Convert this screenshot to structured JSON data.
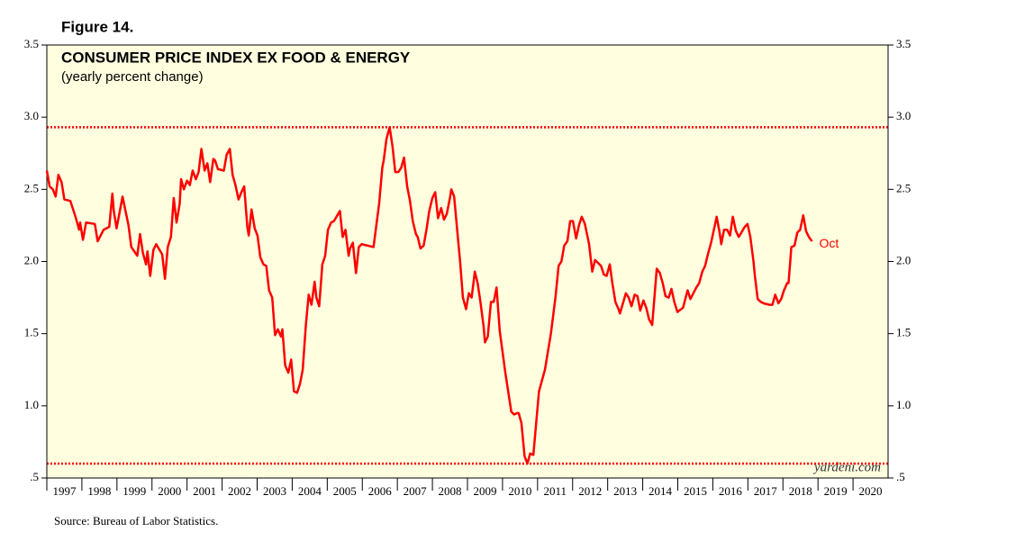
{
  "chart_data": {
    "type": "line",
    "figure_label": "Figure 14.",
    "title": "CONSUMER PRICE INDEX EX FOOD & ENERGY",
    "subtitle": "(yearly percent change)",
    "source": "Source: Bureau of Labor Statistics.",
    "watermark": "yardeni.com",
    "end_label": "Oct",
    "color": "#ff0000",
    "hlines": [
      2.93,
      0.6
    ],
    "xlim": [
      1997,
      2021
    ],
    "xticks": [
      1997,
      1998,
      1999,
      2000,
      2001,
      2002,
      2003,
      2004,
      2005,
      2006,
      2007,
      2008,
      2009,
      2010,
      2011,
      2012,
      2013,
      2014,
      2015,
      2016,
      2017,
      2018,
      2019,
      2020
    ],
    "ylim": [
      0.5,
      3.5
    ],
    "yticks": [
      {
        "value": 0.5,
        "label": ".5"
      },
      {
        "value": 1,
        "label": "1.0"
      },
      {
        "value": 1.5,
        "label": "1.5"
      },
      {
        "value": 2,
        "label": "2.0"
      },
      {
        "value": 2.5,
        "label": "2.5"
      },
      {
        "value": 3,
        "label": "3.0"
      },
      3.5
    ],
    "x": [
      1997,
      1997.08,
      1997.17,
      1997.25,
      1997.33,
      1997.42,
      1997.5,
      1997.67,
      1997.83,
      1997.92,
      1997.95,
      1998.03,
      1998.12,
      1998.37,
      1998.45,
      1998.62,
      1998.78,
      1998.87,
      1998.91,
      1998.99,
      1999.16,
      1999.33,
      1999.41,
      1999.58,
      1999.66,
      1999.74,
      1999.83,
      1999.87,
      1999.95,
      2000.04,
      2000.12,
      2000.29,
      2000.37,
      2000.45,
      2000.54,
      2000.62,
      2000.7,
      2000.79,
      2000.83,
      2000.91,
      2001.0,
      2001.08,
      2001.16,
      2001.25,
      2001.33,
      2001.41,
      2001.5,
      2001.58,
      2001.66,
      2001.75,
      2001.8,
      2001.88,
      2002.05,
      2002.13,
      2002.22,
      2002.3,
      2002.38,
      2002.47,
      2002.55,
      2002.63,
      2002.72,
      2002.76,
      2002.84,
      2002.93,
      2003.01,
      2003.09,
      2003.18,
      2003.26,
      2003.34,
      2003.43,
      2003.51,
      2003.59,
      2003.68,
      2003.72,
      2003.8,
      2003.89,
      2003.97,
      2004.05,
      2004.14,
      2004.22,
      2004.3,
      2004.39,
      2004.47,
      2004.55,
      2004.64,
      2004.69,
      2004.77,
      2004.86,
      2004.94,
      2005.02,
      2005.11,
      2005.19,
      2005.36,
      2005.44,
      2005.52,
      2005.61,
      2005.65,
      2005.73,
      2005.82,
      2005.9,
      2005.98,
      2006.32,
      2006.48,
      2006.57,
      2006.61,
      2006.69,
      2006.78,
      2006.86,
      2006.94,
      2007.03,
      2007.11,
      2007.19,
      2007.28,
      2007.36,
      2007.44,
      2007.53,
      2007.58,
      2007.66,
      2007.75,
      2007.83,
      2007.91,
      2008.0,
      2008.08,
      2008.16,
      2008.25,
      2008.33,
      2008.41,
      2008.5,
      2008.54,
      2008.62,
      2008.71,
      2008.79,
      2008.87,
      2008.96,
      2009.04,
      2009.12,
      2009.21,
      2009.29,
      2009.37,
      2009.46,
      2009.5,
      2009.58,
      2009.67,
      2009.75,
      2009.83,
      2009.92,
      2010.08,
      2010.25,
      2010.33,
      2010.42,
      2010.46,
      2010.54,
      2010.63,
      2010.71,
      2010.79,
      2010.88,
      2010.96,
      2011.04,
      2011.21,
      2011.38,
      2011.51,
      2011.6,
      2011.68,
      2011.76,
      2011.85,
      2011.93,
      2012.01,
      2012.1,
      2012.18,
      2012.26,
      2012.35,
      2012.47,
      2012.56,
      2012.64,
      2012.81,
      2012.89,
      2012.97,
      2013.06,
      2013.14,
      2013.22,
      2013.31,
      2013.35,
      2013.52,
      2013.6,
      2013.68,
      2013.77,
      2013.85,
      2013.93,
      2014.02,
      2014.1,
      2014.18,
      2014.27,
      2014.32,
      2014.4,
      2014.49,
      2014.57,
      2014.65,
      2014.74,
      2014.82,
      2014.9,
      2014.99,
      2015.15,
      2015.28,
      2015.36,
      2015.53,
      2015.61,
      2015.7,
      2015.78,
      2015.86,
      2015.95,
      2016.03,
      2016.11,
      2016.2,
      2016.24,
      2016.32,
      2016.41,
      2016.49,
      2016.57,
      2016.66,
      2016.74,
      2016.91,
      2016.99,
      2017.07,
      2017.16,
      2017.2,
      2017.28,
      2017.37,
      2017.45,
      2017.62,
      2017.7,
      2017.78,
      2017.87,
      2017.95,
      2018.03,
      2018.12,
      2018.16,
      2018.24,
      2018.33,
      2018.41,
      2018.49,
      2018.58,
      2018.66,
      2018.74,
      2018.83
    ],
    "values": [
      2.63,
      2.52,
      2.5,
      2.45,
      2.6,
      2.55,
      2.43,
      2.42,
      2.3,
      2.22,
      2.27,
      2.15,
      2.27,
      2.26,
      2.14,
      2.22,
      2.24,
      2.47,
      2.35,
      2.23,
      2.45,
      2.25,
      2.1,
      2.04,
      2.19,
      2.06,
      1.98,
      2.07,
      1.9,
      2.08,
      2.12,
      2.05,
      1.88,
      2.1,
      2.17,
      2.44,
      2.27,
      2.4,
      2.57,
      2.5,
      2.56,
      2.53,
      2.63,
      2.57,
      2.62,
      2.78,
      2.63,
      2.68,
      2.55,
      2.71,
      2.7,
      2.64,
      2.63,
      2.74,
      2.78,
      2.6,
      2.53,
      2.43,
      2.48,
      2.52,
      2.24,
      2.18,
      2.36,
      2.23,
      2.18,
      2.03,
      1.98,
      1.97,
      1.8,
      1.75,
      1.49,
      1.53,
      1.48,
      1.53,
      1.28,
      1.23,
      1.32,
      1.1,
      1.09,
      1.15,
      1.25,
      1.56,
      1.77,
      1.7,
      1.86,
      1.75,
      1.69,
      1.98,
      2.04,
      2.22,
      2.27,
      2.28,
      2.35,
      2.17,
      2.22,
      2.04,
      2.09,
      2.13,
      1.92,
      2.1,
      2.12,
      2.1,
      2.4,
      2.65,
      2.7,
      2.85,
      2.93,
      2.8,
      2.62,
      2.62,
      2.65,
      2.72,
      2.52,
      2.42,
      2.28,
      2.19,
      2.17,
      2.09,
      2.11,
      2.22,
      2.35,
      2.44,
      2.48,
      2.3,
      2.37,
      2.29,
      2.33,
      2.44,
      2.5,
      2.45,
      2.21,
      2.0,
      1.75,
      1.67,
      1.78,
      1.75,
      1.93,
      1.85,
      1.72,
      1.55,
      1.44,
      1.48,
      1.72,
      1.72,
      1.82,
      1.52,
      1.23,
      0.96,
      0.94,
      0.95,
      0.95,
      0.88,
      0.65,
      0.6,
      0.67,
      0.66,
      0.88,
      1.1,
      1.25,
      1.5,
      1.75,
      1.97,
      2.0,
      2.11,
      2.14,
      2.28,
      2.28,
      2.16,
      2.25,
      2.31,
      2.26,
      2.12,
      1.93,
      2.01,
      1.97,
      1.91,
      1.9,
      1.98,
      1.84,
      1.72,
      1.67,
      1.64,
      1.78,
      1.75,
      1.69,
      1.77,
      1.76,
      1.66,
      1.73,
      1.68,
      1.6,
      1.56,
      1.71,
      1.95,
      1.92,
      1.85,
      1.76,
      1.75,
      1.81,
      1.72,
      1.65,
      1.68,
      1.8,
      1.74,
      1.82,
      1.85,
      1.93,
      1.97,
      2.05,
      2.13,
      2.22,
      2.31,
      2.19,
      2.12,
      2.22,
      2.22,
      2.18,
      2.31,
      2.21,
      2.17,
      2.24,
      2.26,
      2.17,
      2.0,
      1.9,
      1.74,
      1.72,
      1.71,
      1.7,
      1.7,
      1.77,
      1.71,
      1.74,
      1.8,
      1.85,
      1.85,
      2.1,
      2.11,
      2.2,
      2.22,
      2.32,
      2.21,
      2.17,
      2.14
    ]
  }
}
